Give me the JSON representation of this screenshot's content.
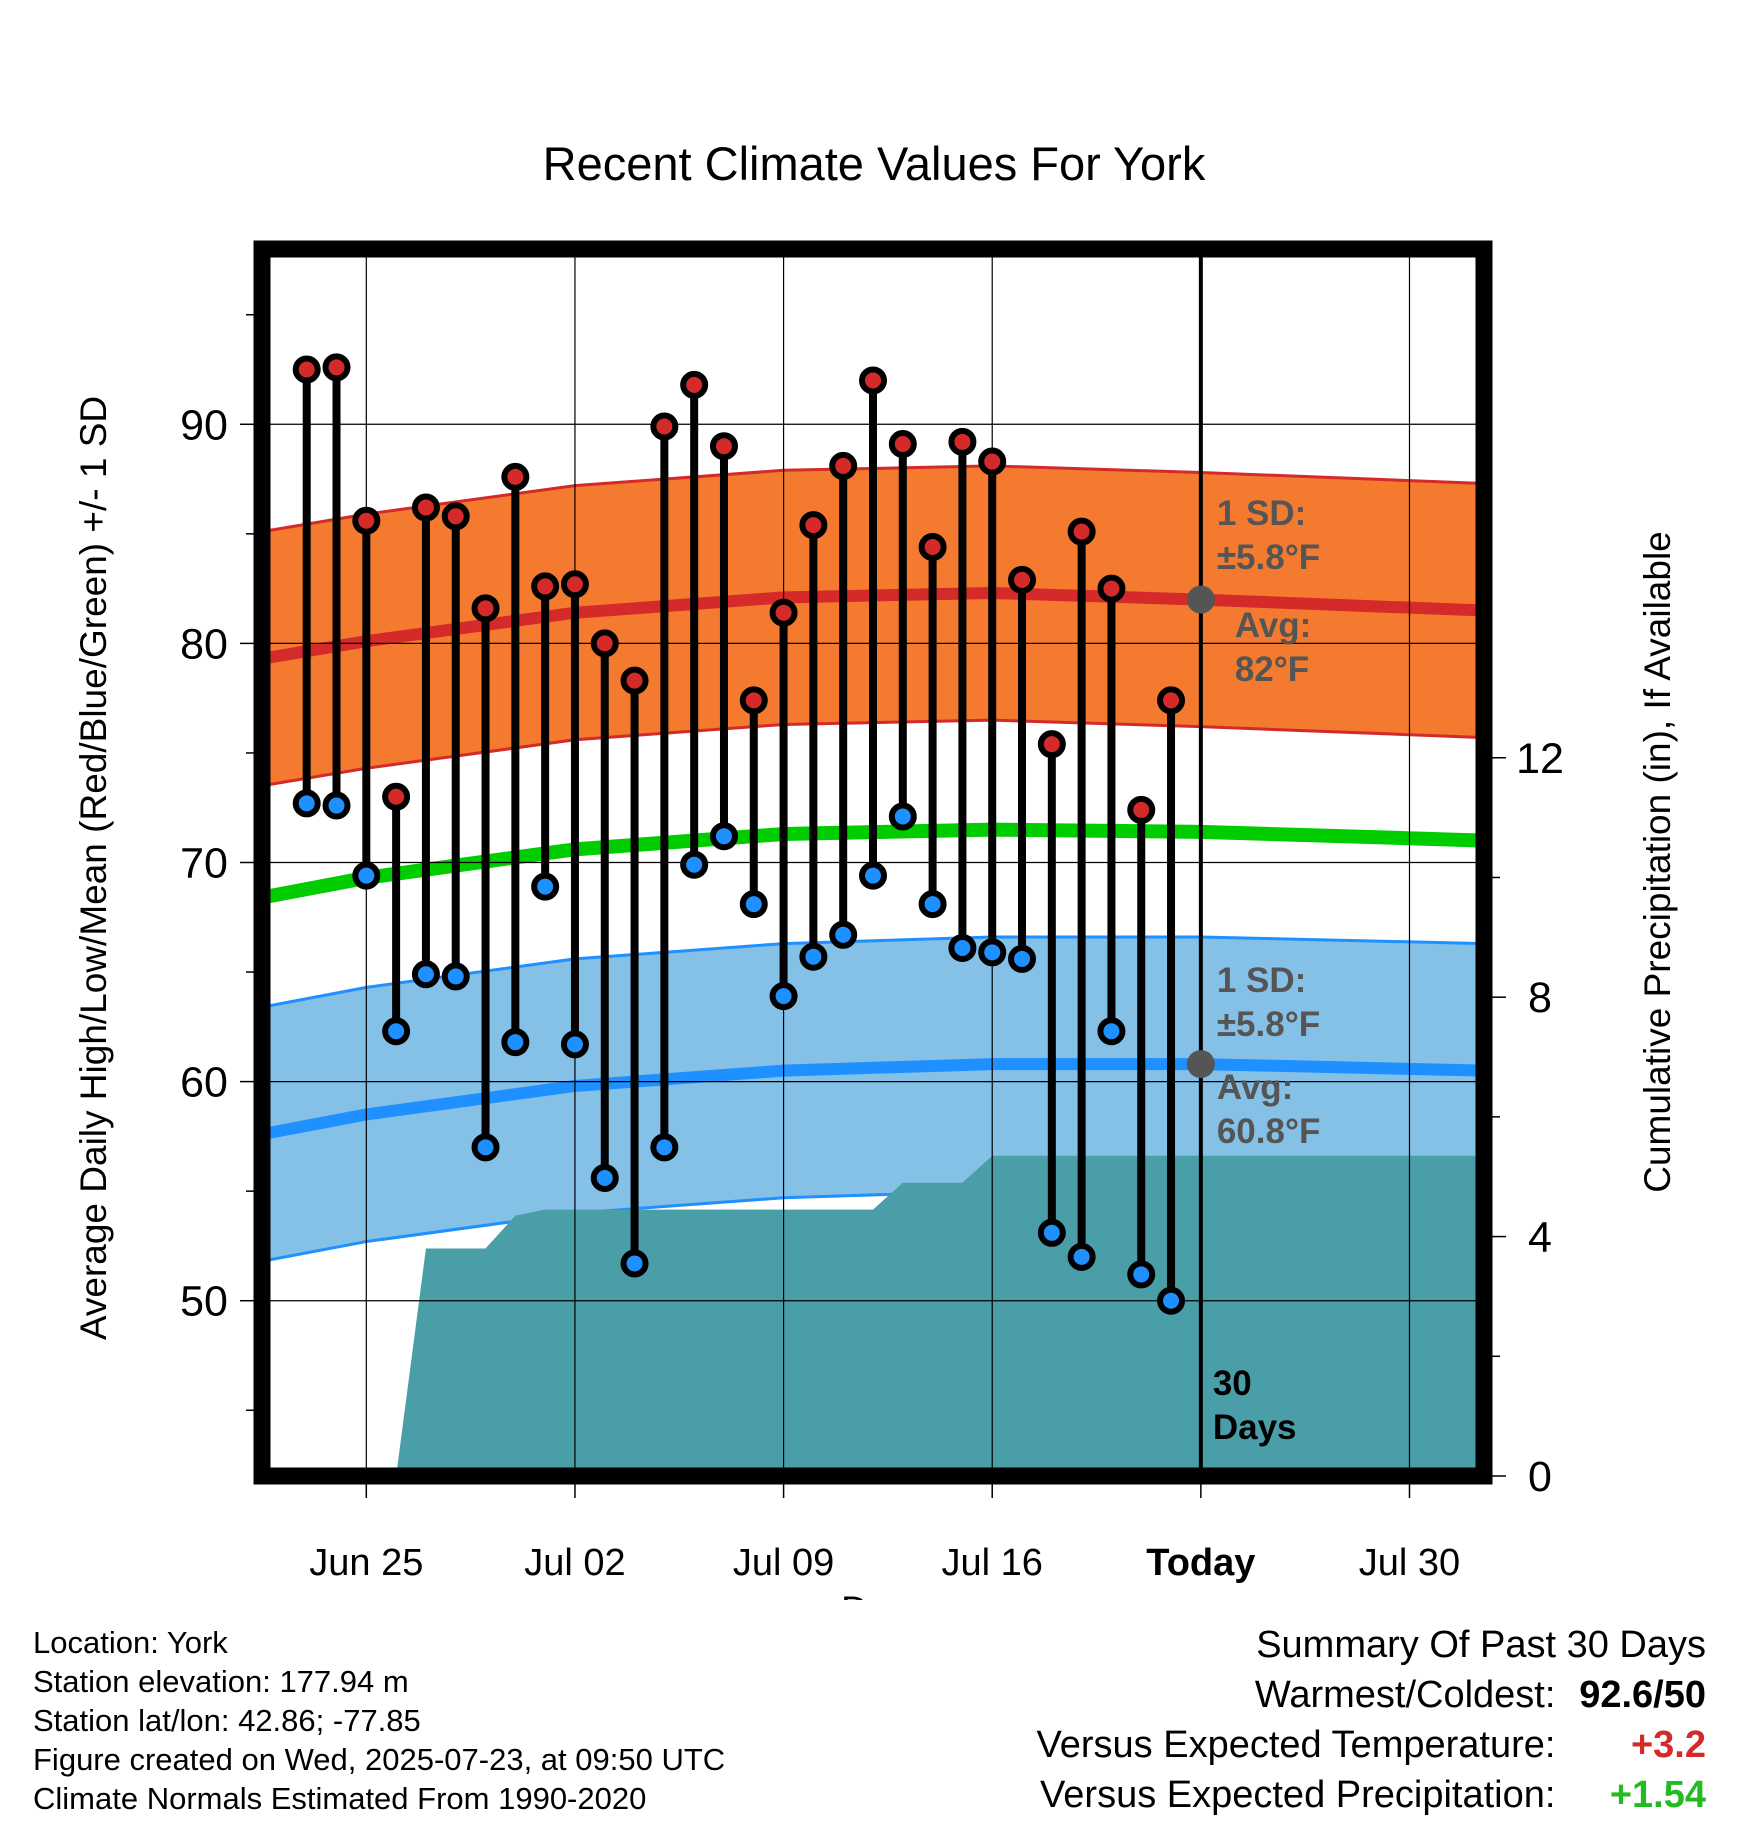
{
  "chart_data": {
    "type": "line",
    "title": "Recent Climate Values For York",
    "xlabel": "Day",
    "ylabel": "Average Daily High/Low/Mean (Red/Blue/Green) +/- 1 SD",
    "y2label": "Cumulative Precipitation (in), If Available",
    "ylim": [
      42,
      98
    ],
    "y2lim": [
      0,
      20.5
    ],
    "xlim": [
      -3.5,
      37.5
    ],
    "x_tick_labels": [
      {
        "x": 0,
        "label": "Jun 25"
      },
      {
        "x": 7,
        "label": "Jul 02"
      },
      {
        "x": 14,
        "label": "Jul 09"
      },
      {
        "x": 21,
        "label": "Jul 16"
      },
      {
        "x": 28,
        "label": "Today"
      },
      {
        "x": 35,
        "label": "Jul 30"
      }
    ],
    "y_ticks": [
      50,
      60,
      70,
      80,
      90
    ],
    "y2_ticks": [
      0,
      4,
      8,
      12
    ],
    "grid": true,
    "daily": {
      "x": [
        -2,
        -1,
        0,
        1,
        2,
        3,
        4,
        5,
        6,
        7,
        8,
        9,
        10,
        11,
        12,
        13,
        14,
        15,
        16,
        17,
        18,
        19,
        20,
        21,
        22,
        23,
        24,
        25,
        26,
        27
      ],
      "high": [
        92.5,
        92.6,
        85.6,
        73.0,
        86.2,
        85.8,
        81.6,
        87.6,
        82.6,
        82.7,
        80.0,
        78.3,
        89.9,
        91.8,
        89.0,
        77.4,
        81.4,
        85.4,
        88.1,
        92.0,
        89.1,
        84.4,
        89.2,
        88.3,
        82.9,
        75.4,
        85.1,
        82.5,
        72.4,
        77.4
      ],
      "low": [
        72.7,
        72.6,
        69.4,
        62.3,
        64.9,
        64.8,
        57.0,
        61.8,
        68.9,
        61.7,
        55.6,
        51.7,
        57.0,
        69.9,
        71.2,
        68.1,
        63.9,
        65.7,
        66.7,
        69.4,
        72.1,
        68.1,
        66.1,
        65.9,
        65.6,
        53.1,
        52.0,
        62.3,
        51.2,
        50.0
      ]
    },
    "normals": {
      "x": [
        -3.5,
        0,
        7,
        14,
        21,
        28,
        37.5
      ],
      "avg_high": [
        79.3,
        80.1,
        81.4,
        82.1,
        82.3,
        82.0,
        81.5
      ],
      "avg_low": [
        57.6,
        58.5,
        59.8,
        60.5,
        60.8,
        60.8,
        60.5
      ],
      "avg_mean": [
        68.4,
        69.3,
        70.6,
        71.3,
        71.5,
        71.4,
        71.0
      ],
      "sd": 5.8
    },
    "precip": {
      "x": [
        -3.5,
        -2,
        -1,
        0,
        0.55,
        1,
        2,
        3,
        4,
        5,
        6,
        7,
        8,
        9,
        10,
        11,
        12,
        13,
        14,
        15,
        16,
        17,
        18,
        19,
        20,
        21,
        22,
        23,
        24,
        25,
        26,
        27,
        28,
        37.5
      ],
      "cum": [
        0,
        0,
        0,
        0,
        0,
        0,
        3.8,
        3.8,
        3.8,
        4.35,
        4.45,
        4.45,
        4.45,
        4.45,
        4.45,
        4.45,
        4.45,
        4.45,
        4.45,
        4.45,
        4.45,
        4.45,
        4.9,
        4.9,
        4.9,
        5.35,
        5.35,
        5.35,
        5.35,
        5.35,
        5.35,
        5.35,
        5.35,
        5.35
      ]
    },
    "today_x": 28,
    "annotations": {
      "high_sd": [
        "1 SD:",
        "±5.8°F"
      ],
      "high_avg": [
        "Avg:",
        "82°F"
      ],
      "low_sd": [
        "1 SD:",
        "±5.8°F"
      ],
      "low_avg": [
        "Avg:",
        "60.8°F"
      ],
      "period": [
        "30",
        "Days"
      ]
    },
    "colors": {
      "high_band": "#f47a30",
      "high_band_edge": "#d42a2a",
      "high_line": "#d42a2a",
      "low_band": "#85c1e6",
      "low_band_edge": "#1e90ff",
      "low_line": "#1e90ff",
      "mean_line": "#00cc00",
      "precip": "#4a9ea8",
      "high_dot": "#d42a2a",
      "low_dot": "#1e90ff",
      "annotation": "#555555"
    }
  },
  "station": {
    "location": "Location: York",
    "elevation": "Station elevation: 177.94 m",
    "latlon": "Station lat/lon: 42.86; -77.85",
    "created": "Figure created on Wed, 2025-07-23, at 09:50 UTC",
    "normals": "Climate Normals Estimated From 1990-2020"
  },
  "summary": {
    "title": "Summary Of Past 30 Days",
    "warm_label": "Warmest/Coldest:",
    "warm_value": "92.6/50",
    "temp_label": "Versus Expected Temperature:",
    "temp_value": "+3.2",
    "temp_color": "#d42a2a",
    "precip_label": "Versus Expected Precipitation:",
    "precip_value": "+1.54",
    "precip_color": "#22bb22"
  }
}
